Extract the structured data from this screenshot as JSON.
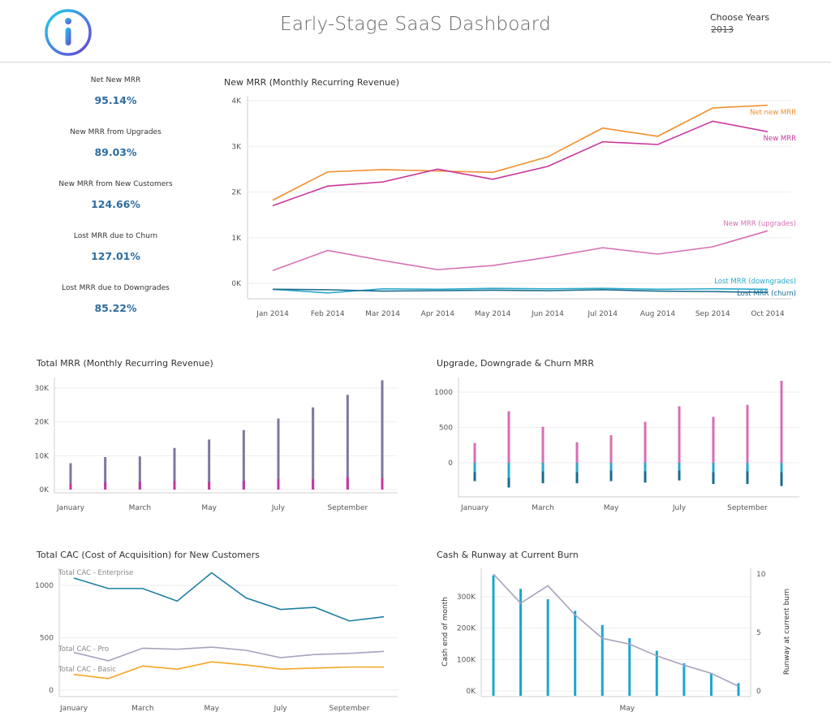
{
  "header": {
    "title": "Early-Stage SaaS Dashboard",
    "years_label": "Choose Years",
    "years_value": "2013"
  },
  "kpis": [
    {
      "label": "Net New MRR",
      "value": "95.14%"
    },
    {
      "label": "New MRR from Upgrades",
      "value": "89.03%"
    },
    {
      "label": "New MRR from New Customers",
      "value": "124.66%"
    },
    {
      "label": "Lost MRR due to Churn",
      "value": "127.01%"
    },
    {
      "label": "Lost MRR due to Downgrades",
      "value": "85.22%"
    }
  ],
  "colors": {
    "orange": "#f28e2b",
    "magenta": "#c9359c",
    "pink": "#d66fb4",
    "cyan": "#29a9c9",
    "navy": "#1b6b8e",
    "purple": "#7e77a0",
    "teal": "#1d7fa1",
    "lavender": "#a8a2bd",
    "gold": "#f5a623",
    "bar_blue": "#1aa7cf"
  },
  "chart_data": [
    {
      "type": "line",
      "title": "New MRR (Monthly Recurring Revenue)",
      "x": [
        "Jan 2014",
        "Feb 2014",
        "Mar 2014",
        "Apr 2014",
        "May 2014",
        "Jun 2014",
        "Jul 2014",
        "Aug 2014",
        "Sep 2014",
        "Oct 2014"
      ],
      "yticks": [
        "0K",
        "1K",
        "2K",
        "3K",
        "4K"
      ],
      "ylim": [
        -200,
        4000
      ],
      "series": [
        {
          "name": "Net new MRR",
          "color": "#f28e2b",
          "values": [
            1820,
            2440,
            2490,
            2460,
            2430,
            2770,
            3400,
            3220,
            3840,
            3900
          ]
        },
        {
          "name": "New MRR",
          "color": "#c9359c",
          "values": [
            1700,
            2130,
            2220,
            2500,
            2280,
            2560,
            3100,
            3040,
            3550,
            3320
          ]
        },
        {
          "name": "New MRR (upgrades)",
          "color": "#d66fb4",
          "values": [
            280,
            720,
            500,
            300,
            390,
            570,
            780,
            640,
            800,
            1150
          ]
        },
        {
          "name": "Lost MRR (downgrades)",
          "color": "#29a9c9",
          "values": [
            -130,
            -210,
            -120,
            -130,
            -110,
            -120,
            -110,
            -130,
            -120,
            -130
          ]
        },
        {
          "name": "Lost MRR (churn)",
          "color": "#1b6b8e",
          "values": [
            -130,
            -140,
            -170,
            -160,
            -150,
            -160,
            -140,
            -170,
            -180,
            -200
          ]
        }
      ]
    },
    {
      "type": "bar",
      "title": "Total MRR (Monthly Recurring Revenue)",
      "xticks": [
        "January",
        "March",
        "May",
        "July",
        "September"
      ],
      "yticks": [
        "0K",
        "10K",
        "20K",
        "30K"
      ],
      "ylim": [
        0,
        34000
      ],
      "series": [
        {
          "name": "Total MRR",
          "color": "#7e77a0",
          "values": [
            7800,
            9600,
            9800,
            12300,
            14800,
            17600,
            21000,
            24300,
            28000,
            32300
          ]
        },
        {
          "name": "New MRR",
          "color": "#c9359c",
          "values": [
            1700,
            2130,
            2220,
            2500,
            2280,
            2560,
            3100,
            3040,
            3550,
            3320
          ]
        }
      ]
    },
    {
      "type": "bar",
      "title": "Upgrade, Downgrade & Churn MRR",
      "xticks": [
        "January",
        "March",
        "May",
        "July",
        "September"
      ],
      "yticks": [
        "0",
        "500",
        "1000"
      ],
      "ylim": [
        -400,
        1200
      ],
      "series": [
        {
          "name": "Upgrades",
          "color": "#d66fb4",
          "values": [
            280,
            730,
            510,
            290,
            390,
            580,
            800,
            650,
            820,
            1160
          ]
        },
        {
          "name": "Downgrades",
          "color": "#29a9c9",
          "values": [
            -130,
            -210,
            -120,
            -130,
            -110,
            -120,
            -110,
            -130,
            -120,
            -130
          ]
        },
        {
          "name": "Churn",
          "color": "#1b6b8e",
          "values": [
            -130,
            -140,
            -170,
            -160,
            -150,
            -160,
            -140,
            -170,
            -180,
            -200
          ]
        }
      ]
    },
    {
      "type": "line",
      "title": "Total CAC (Cost of Acquisition) for New Customers",
      "xticks": [
        "January",
        "March",
        "May",
        "July",
        "September"
      ],
      "yticks": [
        "0",
        "500",
        "1000"
      ],
      "ylim": [
        0,
        1150
      ],
      "series": [
        {
          "name": "Total CAC - Enterprise",
          "color": "#1d7fa1",
          "values": [
            1070,
            970,
            970,
            850,
            1120,
            880,
            770,
            790,
            660,
            700
          ]
        },
        {
          "name": "Total CAC - Pro",
          "color": "#a8a2bd",
          "values": [
            360,
            280,
            400,
            390,
            410,
            380,
            310,
            340,
            350,
            370
          ]
        },
        {
          "name": "Total CAC - Basic",
          "color": "#f5a623",
          "values": [
            150,
            110,
            230,
            200,
            270,
            240,
            200,
            210,
            220,
            220
          ]
        }
      ]
    },
    {
      "type": "bar",
      "title": "Cash & Runway at Current Burn",
      "ylabel": "Cash end of month",
      "y2label": "Runway at current burn",
      "xticks": [
        "May"
      ],
      "yticks": [
        "0K",
        "100K",
        "200K",
        "300K"
      ],
      "y2ticks": [
        "0",
        "5",
        "10"
      ],
      "ylim": [
        0,
        370000
      ],
      "y2lim": [
        0,
        10
      ],
      "series": [
        {
          "name": "Cash end of month",
          "color": "#1aa7cf",
          "values": [
            368000,
            325000,
            292000,
            255000,
            210000,
            168000,
            128000,
            88000,
            55000,
            25000
          ]
        },
        {
          "name": "Runway at current burn",
          "color": "#a8a2bd",
          "values": [
            10,
            7.5,
            9,
            6.5,
            4.5,
            4,
            3,
            2.2,
            1.5,
            0.4
          ]
        }
      ]
    }
  ]
}
